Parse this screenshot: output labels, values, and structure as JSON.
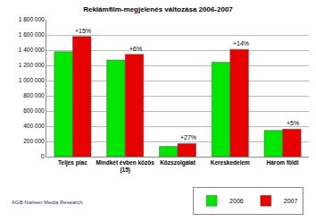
{
  "chart_data": {
    "type": "bar",
    "title": "Reklámfilm-megjelenés változása 2006-2007",
    "categories": [
      "Teljes piac",
      "Mindkét évben közös (15)",
      "Közszolgálat",
      "Kereskedelem",
      "Három földi"
    ],
    "series": [
      {
        "name": "2006",
        "color": "#00e600",
        "values": [
          1380000,
          1270000,
          135000,
          1240000,
          345000
        ]
      },
      {
        "name": "2007",
        "color": "#e60000",
        "values": [
          1580000,
          1345000,
          172000,
          1410000,
          362000
        ]
      }
    ],
    "annotations": [
      {
        "text": "+15%",
        "category": "Teljes piac"
      },
      {
        "text": "+6%",
        "category": "Mindkét évben közös (15)"
      },
      {
        "text": "+27%",
        "category": "Közszolgálat"
      },
      {
        "text": "+14%",
        "category": "Kereskedelem"
      },
      {
        "text": "+5%",
        "category": "Három földi"
      }
    ],
    "source": "AGB Nielsen Media Research",
    "ylim": [
      0,
      1800000
    ],
    "yticks": [
      0,
      {
        "value": 200000,
        "label": "200 000"
      },
      {
        "value": 400000,
        "label": "400 000"
      },
      {
        "value": 600000,
        "label": "600 000"
      },
      {
        "value": 800000,
        "label": "800 000"
      },
      {
        "value": 1000000,
        "label": "1 000 000"
      },
      {
        "value": 1200000,
        "label": "1 200 000"
      },
      {
        "value": 1400000,
        "label": "1 400 000"
      },
      {
        "value": 1600000,
        "label": "1 600 000"
      },
      {
        "value": 1800000,
        "label": "1 800 000"
      }
    ],
    "grid": true,
    "legend": "bottom"
  }
}
